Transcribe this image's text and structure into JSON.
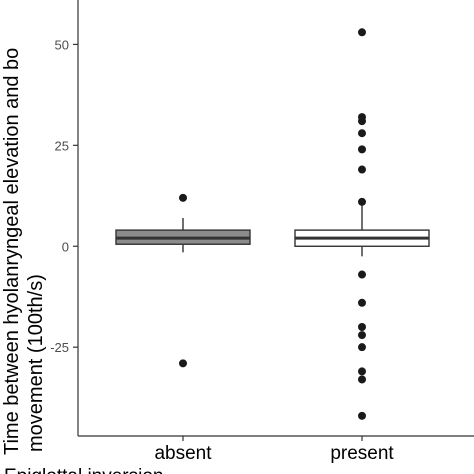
{
  "chart_data": {
    "type": "boxplot",
    "ylabel_line1": "Time between hyolanryngeal elevation and bo",
    "ylabel_line2": "movement (100th/s)",
    "xlabel_partial": "Epiglottal inversion",
    "categories": [
      "absent",
      "present"
    ],
    "ylim": [
      -47,
      61
    ],
    "yticks": [
      50,
      25,
      0,
      -25
    ],
    "ytick_labels": [
      "50",
      "25",
      "0",
      "-25"
    ],
    "grid": false,
    "boxes": [
      {
        "name": "absent",
        "fill": "#8c8c8c",
        "q1": 0.5,
        "median": 2,
        "q3": 4,
        "whisker_low": -1.5,
        "whisker_high": 7,
        "outliers": [
          12,
          -29
        ]
      },
      {
        "name": "present",
        "fill": "#ffffff",
        "q1": 0,
        "median": 2,
        "q3": 4,
        "whisker_low": -2.5,
        "whisker_high": 11,
        "outliers": [
          53,
          32,
          31,
          28,
          24,
          19,
          11,
          -7,
          -14,
          -20,
          -22,
          -25,
          -31,
          -33,
          -42
        ]
      }
    ]
  }
}
